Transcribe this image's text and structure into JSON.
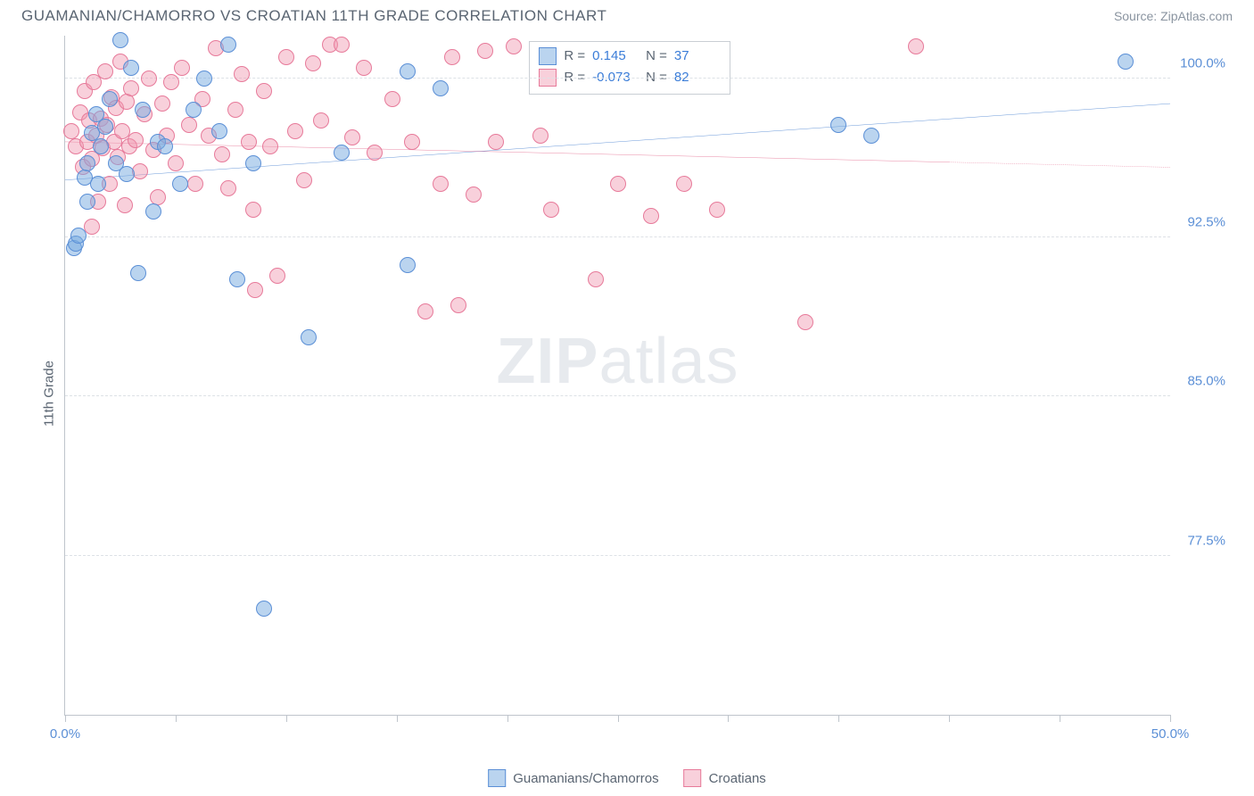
{
  "title": "GUAMANIAN/CHAMORRO VS CROATIAN 11TH GRADE CORRELATION CHART",
  "source": "Source: ZipAtlas.com",
  "ylabel": "11th Grade",
  "watermark_bold": "ZIP",
  "watermark_light": "atlas",
  "chart": {
    "type": "scatter",
    "xlim": [
      0,
      50
    ],
    "ylim": [
      70,
      102
    ],
    "xtick_positions": [
      0,
      5,
      10,
      15,
      20,
      25,
      30,
      35,
      40,
      45,
      50
    ],
    "xtick_labels": {
      "0": "0.0%",
      "50": "50.0%"
    },
    "ytick_positions": [
      77.5,
      85.0,
      92.5,
      100.0
    ],
    "ytick_labels": [
      "77.5%",
      "85.0%",
      "92.5%",
      "100.0%"
    ],
    "grid_color": "#dde1e6",
    "axis_color": "#bfc5cc",
    "background_color": "#ffffff",
    "label_color": "#5b8fd6",
    "text_color": "#5a6572",
    "point_radius": 9,
    "point_opacity": 0.55,
    "series": [
      {
        "name": "Guamanians/Chamorros",
        "color_fill": "rgba(117,169,224,0.5)",
        "color_stroke": "#5b8fd6",
        "trend_color": "#2f6fc9",
        "trend_width": 2.5,
        "R": "0.145",
        "N": "37",
        "trend": {
          "x1": 0,
          "y1": 95.2,
          "x2": 50,
          "y2": 98.8,
          "solid_until_x": 50
        },
        "points": [
          [
            0.4,
            92.0
          ],
          [
            0.5,
            92.2
          ],
          [
            0.6,
            92.6
          ],
          [
            0.9,
            95.3
          ],
          [
            1.0,
            96.0
          ],
          [
            1.0,
            94.2
          ],
          [
            1.2,
            97.4
          ],
          [
            1.4,
            98.3
          ],
          [
            1.5,
            95.0
          ],
          [
            1.6,
            96.8
          ],
          [
            1.8,
            97.7
          ],
          [
            2.0,
            99.0
          ],
          [
            2.3,
            96.0
          ],
          [
            2.5,
            101.8
          ],
          [
            2.8,
            95.5
          ],
          [
            3.0,
            100.5
          ],
          [
            3.3,
            90.8
          ],
          [
            3.5,
            98.5
          ],
          [
            4.0,
            93.7
          ],
          [
            4.2,
            97.0
          ],
          [
            4.5,
            96.8
          ],
          [
            5.2,
            95.0
          ],
          [
            5.8,
            98.5
          ],
          [
            6.3,
            100.0
          ],
          [
            7.0,
            97.5
          ],
          [
            7.4,
            101.6
          ],
          [
            7.8,
            90.5
          ],
          [
            8.5,
            96.0
          ],
          [
            9.0,
            75.0
          ],
          [
            11.0,
            87.8
          ],
          [
            12.5,
            96.5
          ],
          [
            15.5,
            100.3
          ],
          [
            15.5,
            91.2
          ],
          [
            17.0,
            99.5
          ],
          [
            35.0,
            97.8
          ],
          [
            36.5,
            97.3
          ],
          [
            48.0,
            100.8
          ]
        ]
      },
      {
        "name": "Croatians",
        "color_fill": "rgba(240,150,175,0.45)",
        "color_stroke": "#e77a9a",
        "trend_color": "#e05a82",
        "trend_width": 2.5,
        "R": "-0.073",
        "N": "82",
        "trend": {
          "x1": 0,
          "y1": 97.0,
          "x2": 50,
          "y2": 95.8,
          "solid_until_x": 40
        },
        "points": [
          [
            0.3,
            97.5
          ],
          [
            0.5,
            96.8
          ],
          [
            0.7,
            98.4
          ],
          [
            0.8,
            95.8
          ],
          [
            0.9,
            99.4
          ],
          [
            1.0,
            97.0
          ],
          [
            1.1,
            98.0
          ],
          [
            1.2,
            96.2
          ],
          [
            1.3,
            99.8
          ],
          [
            1.4,
            97.3
          ],
          [
            1.5,
            94.2
          ],
          [
            1.6,
            98.1
          ],
          [
            1.7,
            96.7
          ],
          [
            1.8,
            100.3
          ],
          [
            1.9,
            97.8
          ],
          [
            2.0,
            95.0
          ],
          [
            2.1,
            99.1
          ],
          [
            2.2,
            97.0
          ],
          [
            2.3,
            98.6
          ],
          [
            2.4,
            96.3
          ],
          [
            2.5,
            100.8
          ],
          [
            2.6,
            97.5
          ],
          [
            2.7,
            94.0
          ],
          [
            2.8,
            98.9
          ],
          [
            2.9,
            96.8
          ],
          [
            3.0,
            99.5
          ],
          [
            3.2,
            97.1
          ],
          [
            3.4,
            95.6
          ],
          [
            3.6,
            98.3
          ],
          [
            3.8,
            100.0
          ],
          [
            4.0,
            96.6
          ],
          [
            4.2,
            94.4
          ],
          [
            4.4,
            98.8
          ],
          [
            4.6,
            97.3
          ],
          [
            4.8,
            99.8
          ],
          [
            5.0,
            96.0
          ],
          [
            5.3,
            100.5
          ],
          [
            5.6,
            97.8
          ],
          [
            5.9,
            95.0
          ],
          [
            6.2,
            99.0
          ],
          [
            6.5,
            97.3
          ],
          [
            6.8,
            101.4
          ],
          [
            7.1,
            96.4
          ],
          [
            7.4,
            94.8
          ],
          [
            7.7,
            98.5
          ],
          [
            8.0,
            100.2
          ],
          [
            8.3,
            97.0
          ],
          [
            8.5,
            93.8
          ],
          [
            8.6,
            90.0
          ],
          [
            9.0,
            99.4
          ],
          [
            9.3,
            96.8
          ],
          [
            9.6,
            90.7
          ],
          [
            10.0,
            101.0
          ],
          [
            10.4,
            97.5
          ],
          [
            10.8,
            95.2
          ],
          [
            11.2,
            100.7
          ],
          [
            11.6,
            98.0
          ],
          [
            12.0,
            101.6
          ],
          [
            12.5,
            101.6
          ],
          [
            13.0,
            97.2
          ],
          [
            13.5,
            100.5
          ],
          [
            14.0,
            96.5
          ],
          [
            14.8,
            99.0
          ],
          [
            15.7,
            97.0
          ],
          [
            16.3,
            89.0
          ],
          [
            17.0,
            95.0
          ],
          [
            17.5,
            101.0
          ],
          [
            17.8,
            89.3
          ],
          [
            18.5,
            94.5
          ],
          [
            19.0,
            101.3
          ],
          [
            19.5,
            97.0
          ],
          [
            20.3,
            101.5
          ],
          [
            21.5,
            97.3
          ],
          [
            22.0,
            93.8
          ],
          [
            24.0,
            90.5
          ],
          [
            25.0,
            95.0
          ],
          [
            26.5,
            93.5
          ],
          [
            28.0,
            95.0
          ],
          [
            29.5,
            93.8
          ],
          [
            33.5,
            88.5
          ],
          [
            38.5,
            101.5
          ],
          [
            1.2,
            93.0
          ]
        ]
      }
    ]
  },
  "legend_bottom": [
    {
      "label": "Guamanians/Chamorros",
      "fill": "rgba(117,169,224,0.5)",
      "stroke": "#5b8fd6"
    },
    {
      "label": "Croatians",
      "fill": "rgba(240,150,175,0.45)",
      "stroke": "#e77a9a"
    }
  ]
}
